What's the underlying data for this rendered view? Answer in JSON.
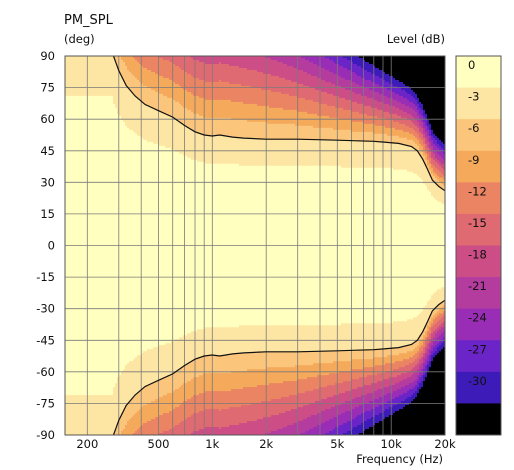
{
  "chart_data": {
    "type": "heatmap",
    "title": "PM_SPL",
    "ylabel": "(deg)",
    "xlabel": "Frequency  (Hz)",
    "colorbar_label": "Level  (dB)",
    "x_scale": "log",
    "xlim": [
      150,
      20000
    ],
    "ylim": [
      -90,
      90
    ],
    "zlim": [
      -33,
      0
    ],
    "x_ticks": [
      {
        "value": 200,
        "label": "200"
      },
      {
        "value": 500,
        "label": "500"
      },
      {
        "value": 1000,
        "label": "1k"
      },
      {
        "value": 2000,
        "label": "2k"
      },
      {
        "value": 5000,
        "label": "5k"
      },
      {
        "value": 10000,
        "label": "10k"
      },
      {
        "value": 20000,
        "label": "20k"
      }
    ],
    "x_grid": [
      200,
      300,
      400,
      500,
      600,
      700,
      800,
      900,
      1000,
      2000,
      3000,
      4000,
      5000,
      6000,
      7000,
      8000,
      9000,
      10000
    ],
    "y_ticks": [
      {
        "value": 90,
        "label": "90"
      },
      {
        "value": 75,
        "label": "75"
      },
      {
        "value": 60,
        "label": "60"
      },
      {
        "value": 45,
        "label": "45"
      },
      {
        "value": 30,
        "label": "30"
      },
      {
        "value": 15,
        "label": "15"
      },
      {
        "value": 0,
        "label": "0"
      },
      {
        "value": -15,
        "label": "-15"
      },
      {
        "value": -30,
        "label": "-30"
      },
      {
        "value": -45,
        "label": "-45"
      },
      {
        "value": -60,
        "label": "-60"
      },
      {
        "value": -75,
        "label": "-75"
      },
      {
        "value": -90,
        "label": "-90"
      }
    ],
    "colorbar": [
      {
        "label": "0",
        "color": "#ffffbf"
      },
      {
        "label": "-3",
        "color": "#fde5a3"
      },
      {
        "label": "-6",
        "color": "#fbc67c"
      },
      {
        "label": "-9",
        "color": "#f4a95b"
      },
      {
        "label": "-12",
        "color": "#ea8462"
      },
      {
        "label": "-15",
        "color": "#df6a72"
      },
      {
        "label": "-18",
        "color": "#cd4e86"
      },
      {
        "label": "-21",
        "color": "#b43c9e"
      },
      {
        "label": "-24",
        "color": "#992db5"
      },
      {
        "label": "-27",
        "color": "#6a24c7"
      },
      {
        "label": "-30",
        "color": "#3c1bb8"
      },
      {
        "label": "",
        "color": "#000000"
      }
    ],
    "grid": true,
    "contour_line": {
      "level_db": -6,
      "points": [
        [
          280,
          90
        ],
        [
          300,
          83
        ],
        [
          330,
          76
        ],
        [
          370,
          71
        ],
        [
          420,
          67
        ],
        [
          500,
          64
        ],
        [
          600,
          61
        ],
        [
          700,
          57
        ],
        [
          800,
          54
        ],
        [
          900,
          52.5
        ],
        [
          1000,
          52
        ],
        [
          1100,
          52.5
        ],
        [
          1300,
          51.5
        ],
        [
          1500,
          51
        ],
        [
          2000,
          50.5
        ],
        [
          3000,
          50.5
        ],
        [
          5000,
          50
        ],
        [
          8000,
          49.5
        ],
        [
          11000,
          48.5
        ],
        [
          13000,
          47
        ],
        [
          14000,
          45
        ],
        [
          15000,
          41
        ],
        [
          16000,
          36
        ],
        [
          17000,
          31
        ],
        [
          18500,
          28
        ],
        [
          20000,
          26
        ]
      ]
    }
  }
}
